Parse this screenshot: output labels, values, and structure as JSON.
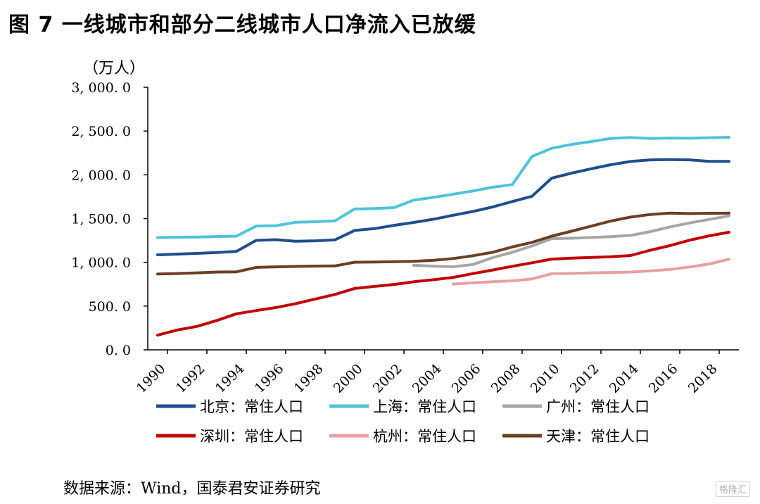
{
  "figure": {
    "title": "图 7 一线城市和部分二线城市人口净流入已放缓",
    "source": "数据来源：Wind，国泰君安证券研究",
    "watermark": "格隆汇"
  },
  "chart_data": {
    "type": "line",
    "ylabel": "（万人）",
    "ylim": [
      0,
      3000
    ],
    "yticks": [
      0,
      500,
      1000,
      1500,
      2000,
      2500,
      3000
    ],
    "ytick_labels": [
      "0. 0",
      "500. 0",
      "1, 000. 0",
      "1, 500. 0",
      "2, 000. 0",
      "2, 500. 0",
      "3, 000. 0"
    ],
    "xlim": [
      1990,
      2019
    ],
    "xticks": [
      1990,
      1992,
      1994,
      1996,
      1998,
      2000,
      2002,
      2004,
      2006,
      2008,
      2010,
      2012,
      2014,
      2016,
      2018
    ],
    "grid": false,
    "legend_position": "bottom",
    "series": [
      {
        "name": "北京：常住人口",
        "color": "#1f4e8c",
        "x": [
          1990,
          1991,
          1992,
          1993,
          1994,
          1995,
          1996,
          1997,
          1998,
          1999,
          2000,
          2001,
          2002,
          2003,
          2004,
          2005,
          2006,
          2007,
          2008,
          2009,
          2010,
          2011,
          2012,
          2013,
          2014,
          2015,
          2016,
          2017,
          2018,
          2019
        ],
        "values": [
          1086,
          1094,
          1102,
          1112,
          1125,
          1251,
          1259,
          1240,
          1246,
          1257,
          1364,
          1385,
          1423,
          1456,
          1493,
          1538,
          1581,
          1633,
          1695,
          1755,
          1962,
          2019,
          2069,
          2115,
          2152,
          2171,
          2173,
          2171,
          2154,
          2154
        ]
      },
      {
        "name": "上海：常住人口",
        "color": "#4fc3d9",
        "x": [
          1990,
          1991,
          1992,
          1993,
          1994,
          1995,
          1996,
          1997,
          1998,
          1999,
          2000,
          2001,
          2002,
          2003,
          2004,
          2005,
          2006,
          2007,
          2008,
          2009,
          2010,
          2011,
          2012,
          2013,
          2014,
          2015,
          2016,
          2017,
          2018,
          2019
        ],
        "values": [
          1283,
          1287,
          1289,
          1294,
          1299,
          1415,
          1419,
          1457,
          1464,
          1474,
          1609,
          1614,
          1625,
          1711,
          1742,
          1778,
          1815,
          1858,
          1888,
          2210,
          2303,
          2347,
          2380,
          2415,
          2426,
          2415,
          2420,
          2418,
          2424,
          2428
        ]
      },
      {
        "name": "广州：常住人口",
        "color": "#a6a6a6",
        "x": [
          2003,
          2004,
          2005,
          2006,
          2007,
          2008,
          2009,
          2010,
          2011,
          2012,
          2013,
          2014,
          2015,
          2016,
          2017,
          2018,
          2019
        ],
        "values": [
          966,
          956,
          949,
          975,
          1054,
          1115,
          1186,
          1271,
          1275,
          1284,
          1293,
          1308,
          1350,
          1404,
          1450,
          1490,
          1531
        ]
      },
      {
        "name": "深圳：常住人口",
        "color": "#c00000",
        "x": [
          1990,
          1991,
          1992,
          1993,
          1994,
          1995,
          1996,
          1997,
          1998,
          1999,
          2000,
          2001,
          2002,
          2003,
          2004,
          2005,
          2006,
          2007,
          2008,
          2009,
          2010,
          2011,
          2012,
          2013,
          2014,
          2015,
          2016,
          2017,
          2018,
          2019
        ],
        "values": [
          168,
          227,
          268,
          335,
          412,
          449,
          483,
          528,
          581,
          633,
          701,
          725,
          747,
          778,
          801,
          828,
          871,
          912,
          955,
          995,
          1037,
          1047,
          1055,
          1063,
          1078,
          1138,
          1191,
          1253,
          1303,
          1344
        ]
      },
      {
        "name": "杭州：常住人口",
        "color": "#e6a0a0",
        "x": [
          2005,
          2006,
          2007,
          2008,
          2009,
          2010,
          2011,
          2012,
          2013,
          2014,
          2015,
          2016,
          2017,
          2018,
          2019
        ],
        "values": [
          751,
          766,
          778,
          788,
          810,
          870,
          873,
          880,
          884,
          889,
          902,
          919,
          947,
          981,
          1036
        ]
      },
      {
        "name": "天津：常住人口",
        "color": "#6b3f24",
        "x": [
          1990,
          1991,
          1992,
          1993,
          1994,
          1995,
          1996,
          1997,
          1998,
          1999,
          2000,
          2001,
          2002,
          2003,
          2004,
          2005,
          2006,
          2007,
          2008,
          2009,
          2010,
          2011,
          2012,
          2013,
          2014,
          2015,
          2016,
          2017,
          2018,
          2019
        ],
        "values": [
          866,
          872,
          880,
          889,
          891,
          942,
          948,
          953,
          957,
          959,
          1001,
          1004,
          1007,
          1011,
          1024,
          1043,
          1075,
          1115,
          1176,
          1228,
          1299,
          1355,
          1413,
          1472,
          1517,
          1547,
          1562,
          1557,
          1560,
          1562
        ]
      }
    ]
  }
}
